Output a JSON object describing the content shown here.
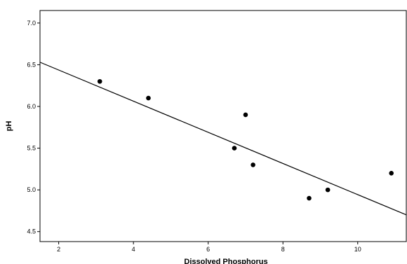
{
  "chart_data": {
    "type": "scatter",
    "title": "",
    "xlabel": "Dissolved Phosphorus",
    "ylabel": "pH",
    "xlim": [
      1.5,
      11.3
    ],
    "ylim": [
      4.38,
      7.15
    ],
    "x_ticks": [
      "2",
      "4",
      "6",
      "8",
      "10"
    ],
    "y_ticks": [
      "4.5",
      "5.0",
      "5.5",
      "6.0",
      "6.5",
      "7.0"
    ],
    "grid": false,
    "points": [
      {
        "x": 3.1,
        "y": 6.3
      },
      {
        "x": 4.4,
        "y": 6.1
      },
      {
        "x": 6.7,
        "y": 5.5
      },
      {
        "x": 7.0,
        "y": 5.9
      },
      {
        "x": 7.2,
        "y": 5.3
      },
      {
        "x": 8.7,
        "y": 4.9
      },
      {
        "x": 9.2,
        "y": 5.0
      },
      {
        "x": 10.9,
        "y": 5.2
      }
    ],
    "fit_line": {
      "type": "linear",
      "slope": -0.1867,
      "intercept": 6.81
    },
    "marker_color": "#000000",
    "line_color": "#000000"
  }
}
